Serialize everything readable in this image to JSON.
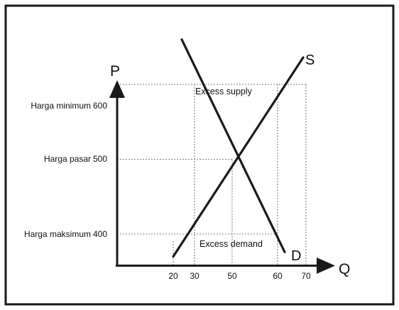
{
  "axes": {
    "y_title": "P",
    "x_title": "Q"
  },
  "curves": {
    "supply": {
      "label": "S",
      "from": {
        "q": 20,
        "p": 370
      },
      "to": {
        "q": 69,
        "p": 636
      }
    },
    "demand": {
      "label": "D",
      "from": {
        "q": 24,
        "p": 660
      },
      "to": {
        "q": 62.5,
        "p": 376
      }
    }
  },
  "price_rows": [
    {
      "name": "Harga minimum",
      "value_label": "600",
      "p": 600
    },
    {
      "name": "Harga pasar",
      "value_label": "500",
      "p": 500
    },
    {
      "name": "Harga maksimum",
      "value_label": "400",
      "p": 400
    }
  ],
  "quantity_ticks": [
    {
      "label": "20",
      "q": 20
    },
    {
      "label": "30",
      "q": 30
    },
    {
      "label": "50",
      "q": 50
    },
    {
      "label": "60",
      "q": 60
    },
    {
      "label": "70",
      "q": 70
    }
  ],
  "annotations": {
    "excess_supply": "Excess supply",
    "excess_demand": "Excess demand"
  },
  "equilibrium": {
    "q": 50,
    "p": 500
  }
}
